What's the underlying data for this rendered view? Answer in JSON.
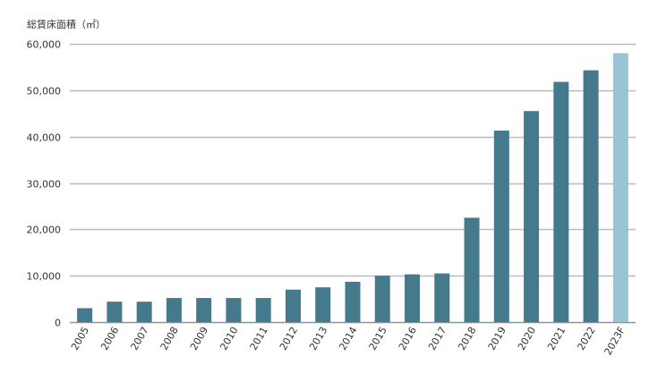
{
  "chart_data": {
    "type": "bar",
    "title": "",
    "ylabel": "総賃床面積（㎡）",
    "xlabel": "",
    "categories": [
      "2005",
      "2006",
      "2007",
      "2008",
      "2009",
      "2010",
      "2011",
      "2012",
      "2013",
      "2014",
      "2015",
      "2016",
      "2017",
      "2018",
      "2019",
      "2020",
      "2021",
      "2022",
      "2023F"
    ],
    "values": [
      3000,
      4400,
      4400,
      5200,
      5200,
      5200,
      5200,
      7000,
      7500,
      8700,
      10000,
      10300,
      10500,
      22500,
      41300,
      45500,
      51800,
      54300,
      58000
    ],
    "forecast_categories": [
      "2023F"
    ],
    "ylim": [
      0,
      60000
    ],
    "yticks": [
      "0",
      "10,000",
      "20,000",
      "30,000",
      "40,000",
      "50,000",
      "60,000"
    ],
    "ytick_values": [
      0,
      10000,
      20000,
      30000,
      40000,
      50000,
      60000
    ],
    "grid": true,
    "legend": "none",
    "colors": {
      "actual": "#45798C",
      "forecast": "#98C5D4",
      "grid": "#B4BDC1",
      "axis": "#8A9499",
      "text": "#333333"
    }
  }
}
